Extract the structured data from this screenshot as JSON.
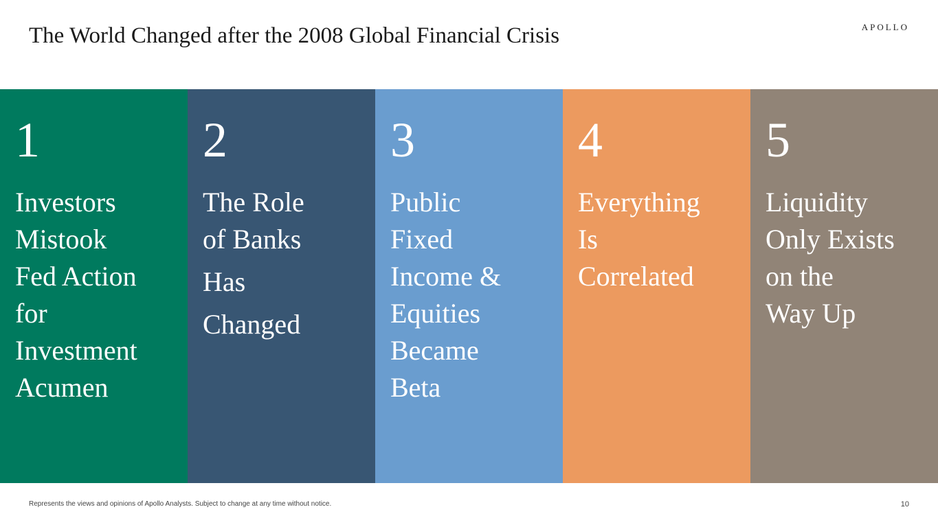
{
  "title": "The World Changed after the 2008 Global Financial Crisis",
  "logo": "APOLLO",
  "panels": [
    {
      "number": "1",
      "color": "#007A5E",
      "lines": [
        "Investors",
        "Mistook",
        "Fed Action",
        "for",
        "Investment",
        "Acumen"
      ]
    },
    {
      "number": "2",
      "color": "#385673",
      "lines": [
        "The Role",
        "of Banks",
        "Has",
        "Changed"
      ]
    },
    {
      "number": "3",
      "color": "#6A9DCF",
      "lines": [
        "Public",
        "Fixed",
        "Income &",
        "Equities",
        "Became",
        "Beta"
      ]
    },
    {
      "number": "4",
      "color": "#EC9A5F",
      "lines": [
        "Everything",
        "Is",
        "Correlated"
      ]
    },
    {
      "number": "5",
      "color": "#918477",
      "lines": [
        "Liquidity",
        "Only Exists",
        "on the",
        "Way Up"
      ]
    }
  ],
  "footer": "Represents the views and opinions of Apollo Analysts.  Subject to change at any time without notice.",
  "page_number": "10"
}
